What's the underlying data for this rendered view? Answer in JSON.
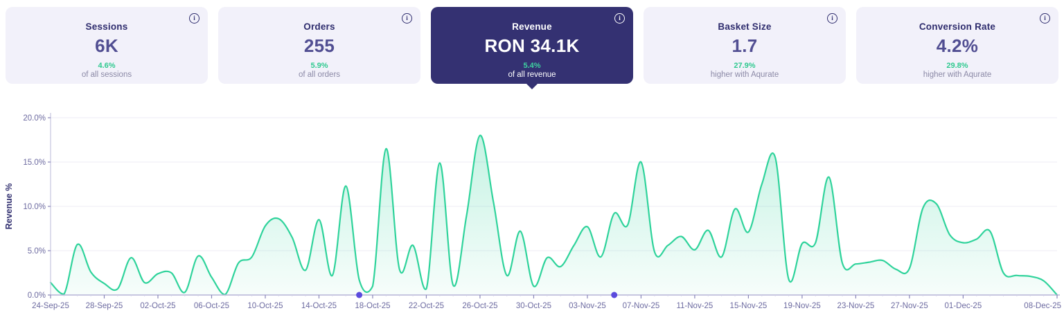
{
  "icons": {
    "info_glyph": "i"
  },
  "colors": {
    "card_bg": "#f2f1fa",
    "card_selected_bg": "#343172",
    "title_navy": "#2f2d6e",
    "value_indigo": "#514e92",
    "delta_green": "#2ec98f",
    "subtext_gray": "#8b89a6",
    "line_green": "#2fd39b",
    "axis_purple": "#b6b4d6",
    "tick_label": "#6c6aa0",
    "marker_violet": "#5b4bdd",
    "gridline": "#ecebf6"
  },
  "cards": [
    {
      "title": "Sessions",
      "value": "6K",
      "delta": "4.6%",
      "subtext": "of all sessions"
    },
    {
      "title": "Orders",
      "value": "255",
      "delta": "5.9%",
      "subtext": "of all orders"
    },
    {
      "title": "Revenue",
      "value": "RON 34.1K",
      "delta": "5.4%",
      "subtext": "of all revenue"
    },
    {
      "title": "Basket Size",
      "value": "1.7",
      "delta": "27.9%",
      "subtext": "higher with Aqurate"
    },
    {
      "title": "Conversion Rate",
      "value": "4.2%",
      "delta": "29.8%",
      "subtext": "higher with Aqurate"
    }
  ],
  "selected_card": "Revenue",
  "chart_data": {
    "type": "area",
    "title": "",
    "xlabel": "",
    "ylabel": "Revenue %",
    "ylim": [
      0,
      20
    ],
    "ytick_labels": [
      "0.0%",
      "5.0%",
      "10.0%",
      "15.0%",
      "20.0%"
    ],
    "ytick_values": [
      0,
      5,
      10,
      15,
      20
    ],
    "grid": true,
    "legend_position": "none",
    "x": [
      "24-Sep-25",
      "25-Sep-25",
      "26-Sep-25",
      "27-Sep-25",
      "28-Sep-25",
      "29-Sep-25",
      "30-Sep-25",
      "01-Oct-25",
      "02-Oct-25",
      "03-Oct-25",
      "04-Oct-25",
      "05-Oct-25",
      "06-Oct-25",
      "07-Oct-25",
      "08-Oct-25",
      "09-Oct-25",
      "10-Oct-25",
      "11-Oct-25",
      "12-Oct-25",
      "13-Oct-25",
      "14-Oct-25",
      "15-Oct-25",
      "16-Oct-25",
      "17-Oct-25",
      "18-Oct-25",
      "19-Oct-25",
      "20-Oct-25",
      "21-Oct-25",
      "22-Oct-25",
      "23-Oct-25",
      "24-Oct-25",
      "25-Oct-25",
      "26-Oct-25",
      "27-Oct-25",
      "28-Oct-25",
      "29-Oct-25",
      "30-Oct-25",
      "31-Oct-25",
      "01-Nov-25",
      "02-Nov-25",
      "03-Nov-25",
      "04-Nov-25",
      "05-Nov-25",
      "06-Nov-25",
      "07-Nov-25",
      "08-Nov-25",
      "09-Nov-25",
      "10-Nov-25",
      "11-Nov-25",
      "12-Nov-25",
      "13-Nov-25",
      "14-Nov-25",
      "15-Nov-25",
      "16-Nov-25",
      "17-Nov-25",
      "18-Nov-25",
      "19-Nov-25",
      "20-Nov-25",
      "21-Nov-25",
      "22-Nov-25",
      "23-Nov-25",
      "24-Nov-25",
      "25-Nov-25",
      "26-Nov-25",
      "27-Nov-25",
      "28-Nov-25",
      "29-Nov-25",
      "30-Nov-25",
      "01-Dec-25",
      "02-Dec-25",
      "03-Dec-25",
      "04-Dec-25",
      "05-Dec-25",
      "06-Dec-25",
      "07-Dec-25",
      "08-Dec-25"
    ],
    "values": [
      1.4,
      0.1,
      5.7,
      2.6,
      1.3,
      0.7,
      4.2,
      1.4,
      2.4,
      2.5,
      0.3,
      4.4,
      2.0,
      0.05,
      3.6,
      4.3,
      7.8,
      8.6,
      6.5,
      2.8,
      8.5,
      2.2,
      12.3,
      1.7,
      1.0,
      16.5,
      2.9,
      5.6,
      0.7,
      14.9,
      1.1,
      9.0,
      18.0,
      10.5,
      2.2,
      7.2,
      1.0,
      4.2,
      3.2,
      5.6,
      7.7,
      4.3,
      9.2,
      7.9,
      15.0,
      4.9,
      5.6,
      6.6,
      5.1,
      7.3,
      4.3,
      9.7,
      7.1,
      12.5,
      15.5,
      1.8,
      5.8,
      5.9,
      13.3,
      3.6,
      3.5,
      3.7,
      3.9,
      2.9,
      3.0,
      9.8,
      10.3,
      6.8,
      5.9,
      6.3,
      7.2,
      2.5,
      2.2,
      2.1,
      1.6,
      0.0
    ],
    "xtick_indices": [
      0,
      4,
      8,
      12,
      16,
      20,
      24,
      28,
      32,
      36,
      40,
      44,
      48,
      52,
      56,
      60,
      64,
      68,
      75
    ],
    "axis_markers": [
      "17-Oct-25",
      "05-Nov-25"
    ]
  }
}
